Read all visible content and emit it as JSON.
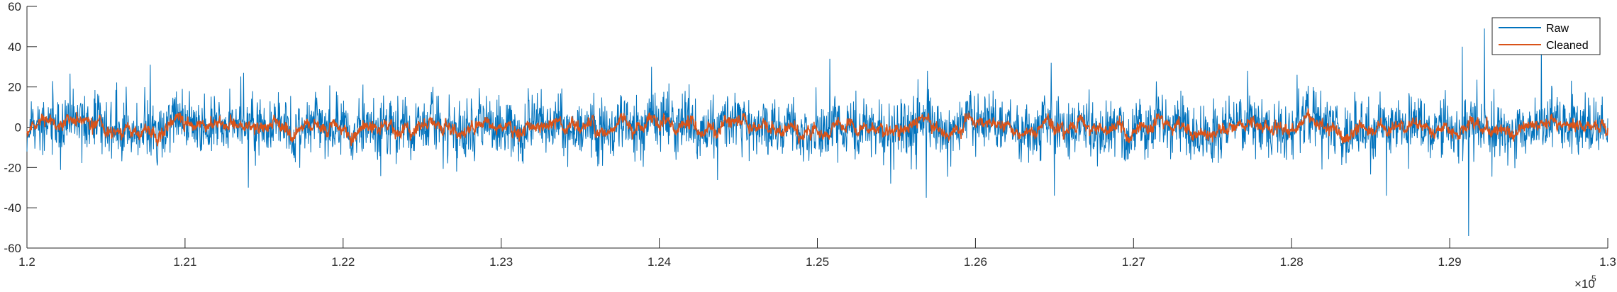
{
  "chart_data": {
    "type": "line",
    "title": "",
    "xlabel": "",
    "ylabel": "",
    "xlim": [
      120000,
      130000
    ],
    "ylim": [
      -60,
      60
    ],
    "x_tick_labels": [
      "1.2",
      "1.21",
      "1.22",
      "1.23",
      "1.24",
      "1.25",
      "1.26",
      "1.27",
      "1.28",
      "1.29",
      "1.3"
    ],
    "x_tick_values": [
      120000,
      121000,
      122000,
      123000,
      124000,
      125000,
      126000,
      127000,
      128000,
      129000,
      130000
    ],
    "x_exponent_label": "×10",
    "x_exponent_power": "5",
    "y_tick_labels": [
      "60",
      "40",
      "20",
      "0",
      "-20",
      "-40",
      "-60"
    ],
    "y_tick_values": [
      60,
      40,
      20,
      0,
      -20,
      -40,
      -60
    ],
    "grid": false,
    "box": "left-bottom-axes-only",
    "legend_position": "top-right",
    "series": [
      {
        "name": "Raw",
        "color": "#0072BD",
        "x_range": [
          120000,
          130000
        ],
        "approx_std": 7,
        "approx_min": -54,
        "approx_max": 49,
        "notable_points": [
          {
            "x": 120780,
            "y": 31
          },
          {
            "x": 121400,
            "y": -30
          },
          {
            "x": 123950,
            "y": 30
          },
          {
            "x": 125080,
            "y": 34
          },
          {
            "x": 125690,
            "y": -35
          },
          {
            "x": 126480,
            "y": 32
          },
          {
            "x": 126500,
            "y": -34
          },
          {
            "x": 128600,
            "y": -34
          },
          {
            "x": 129080,
            "y": 40
          },
          {
            "x": 129120,
            "y": -54
          },
          {
            "x": 129220,
            "y": 49
          },
          {
            "x": 129580,
            "y": 42
          }
        ]
      },
      {
        "name": "Cleaned",
        "color": "#D95319",
        "x_range": [
          120000,
          130000
        ],
        "approx_std": 3,
        "approx_min": -13,
        "approx_max": 14
      }
    ]
  }
}
